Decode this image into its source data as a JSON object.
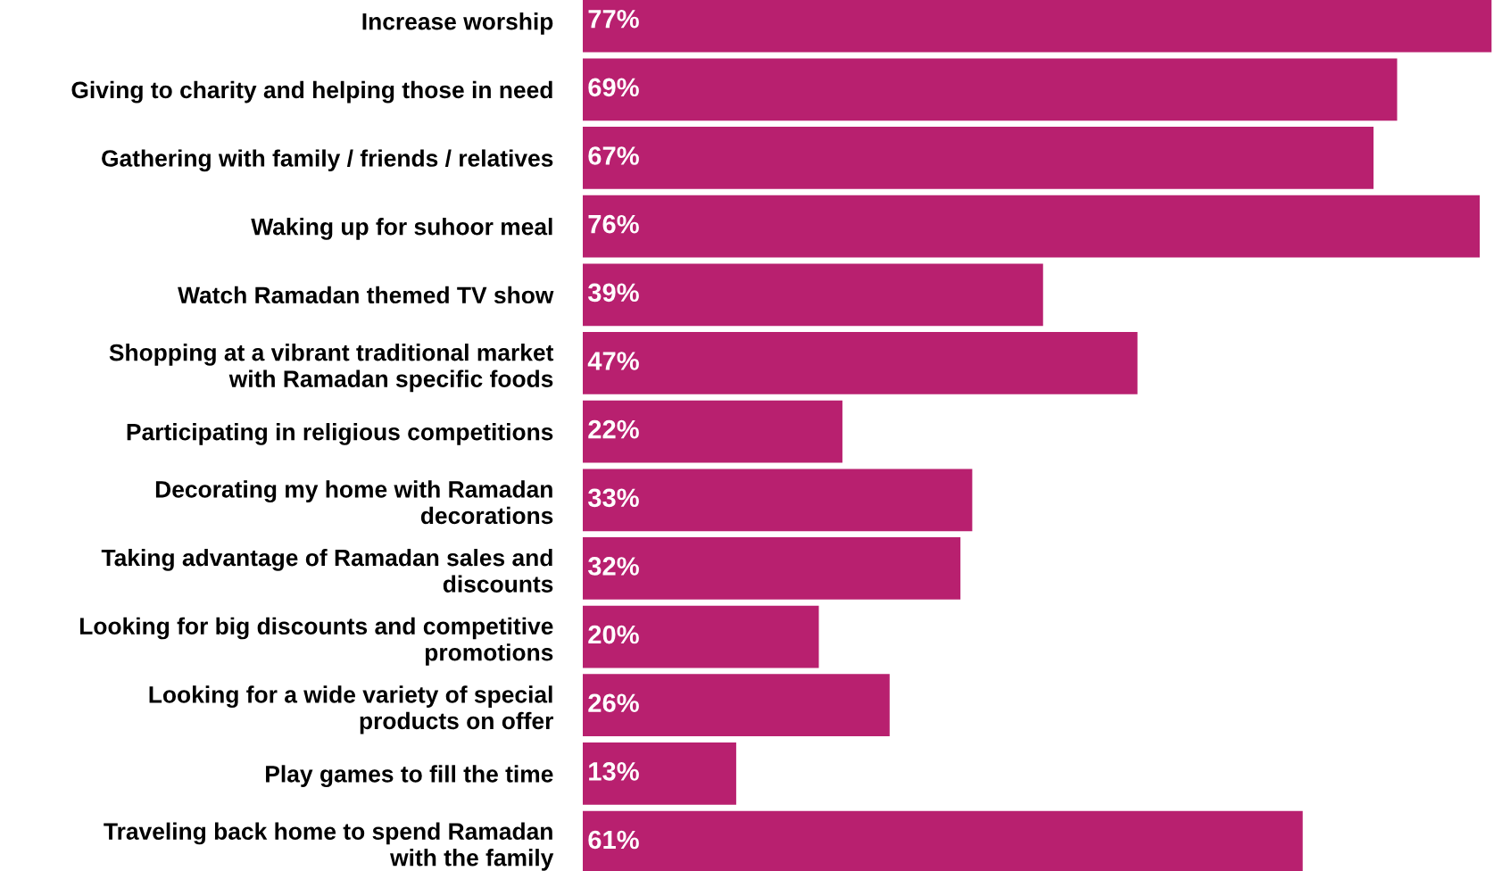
{
  "chart_data": {
    "type": "bar",
    "orientation": "horizontal",
    "categories": [
      "Increase worship",
      "Giving to charity and helping those in need",
      "Gathering with family / friends / relatives",
      "Waking up for suhoor meal",
      "Watch Ramadan themed TV show",
      "Shopping at a vibrant traditional market\nwith Ramadan specific foods",
      "Participating in religious competitions",
      "Decorating my home with Ramadan\ndecorations",
      "Taking advantage of Ramadan sales and\ndiscounts",
      "Looking for big discounts and competitive\npromotions",
      "Looking for a wide variety of special\nproducts on offer",
      "Play games to fill the time",
      "Traveling back home to spend Ramadan\nwith the family"
    ],
    "values": [
      77,
      69,
      67,
      76,
      39,
      47,
      22,
      33,
      32,
      20,
      26,
      13,
      61
    ],
    "value_labels": [
      "77%",
      "69%",
      "67%",
      "76%",
      "39%",
      "47%",
      "22%",
      "33%",
      "32%",
      "20%",
      "26%",
      "13%",
      "61%"
    ],
    "color": "#b8206f",
    "tick_labels": "y",
    "grid": false,
    "legend": false
  }
}
